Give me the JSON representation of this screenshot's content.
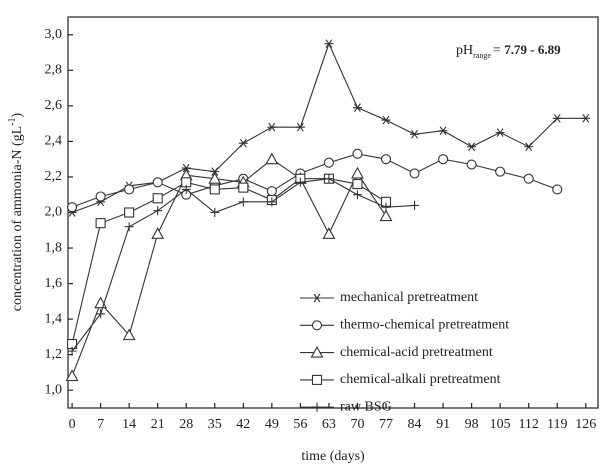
{
  "chart_data": {
    "type": "line",
    "x_label": "time (days)",
    "y_label": [
      "concentration of ammonia-N (gL",
      "-1",
      ")"
    ],
    "annotation": [
      "pH",
      "range",
      "= ",
      "7.79 - 6.89"
    ],
    "x": [
      0,
      7,
      14,
      21,
      28,
      35,
      42,
      49,
      56,
      63,
      70,
      77,
      84,
      91,
      98,
      105,
      112,
      119,
      126
    ],
    "xlim": [
      -1,
      129
    ],
    "xticks": [
      0,
      7,
      14,
      21,
      28,
      35,
      42,
      49,
      56,
      63,
      70,
      77,
      84,
      91,
      98,
      105,
      112,
      119,
      126
    ],
    "ylim": [
      0.9,
      3.1
    ],
    "yticks": [
      {
        "value": 1.0,
        "label": "1,0"
      },
      {
        "value": 1.2,
        "label": "1,2"
      },
      {
        "value": 1.4,
        "label": "1,4"
      },
      {
        "value": 1.6,
        "label": "1,6"
      },
      {
        "value": 1.8,
        "label": "1,8"
      },
      {
        "value": 2.0,
        "label": "2,0"
      },
      {
        "value": 2.2,
        "label": "2,2"
      },
      {
        "value": 2.4,
        "label": "2,4"
      },
      {
        "value": 2.6,
        "label": "2,6"
      },
      {
        "value": 2.8,
        "label": "2,8"
      },
      {
        "value": 3.0,
        "label": "3,0"
      }
    ],
    "legend": "lower right",
    "series": [
      {
        "name": "mechanical pretreatment",
        "color": "#333333",
        "marker": "star",
        "values": [
          2.0,
          2.06,
          2.15,
          2.17,
          2.25,
          2.23,
          2.39,
          2.48,
          2.48,
          2.95,
          2.59,
          2.52,
          2.44,
          2.46,
          2.37,
          2.45,
          2.37,
          2.53,
          2.53
        ]
      },
      {
        "name": "thermo-chemical pretreatment",
        "color": "#333333",
        "marker": "circle",
        "values": [
          2.03,
          2.09,
          2.13,
          2.17,
          2.1,
          2.15,
          2.19,
          2.12,
          2.22,
          2.28,
          2.33,
          2.3,
          2.22,
          2.3,
          2.27,
          2.23,
          2.19,
          2.13,
          null
        ]
      },
      {
        "name": "chemical-acid pretreatment",
        "color": "#333333",
        "marker": "triangle",
        "values": [
          1.08,
          1.49,
          1.31,
          1.88,
          2.21,
          2.19,
          2.17,
          2.3,
          2.19,
          1.88,
          2.22,
          1.98,
          null,
          null,
          null,
          null,
          null,
          null,
          null
        ]
      },
      {
        "name": "chemical-alkali pretreatment",
        "color": "#333333",
        "marker": "square",
        "values": [
          1.26,
          1.94,
          2.0,
          2.08,
          2.17,
          2.13,
          2.14,
          2.07,
          2.19,
          2.19,
          2.16,
          2.06,
          null,
          null,
          null,
          null,
          null,
          null,
          null
        ]
      },
      {
        "name": "raw BSG",
        "color": "#333333",
        "marker": "plus",
        "values": [
          1.22,
          1.43,
          1.92,
          2.01,
          2.13,
          2.0,
          2.06,
          2.06,
          2.17,
          2.19,
          2.1,
          2.03,
          2.04,
          null,
          null,
          null,
          null,
          null,
          null
        ]
      }
    ]
  }
}
